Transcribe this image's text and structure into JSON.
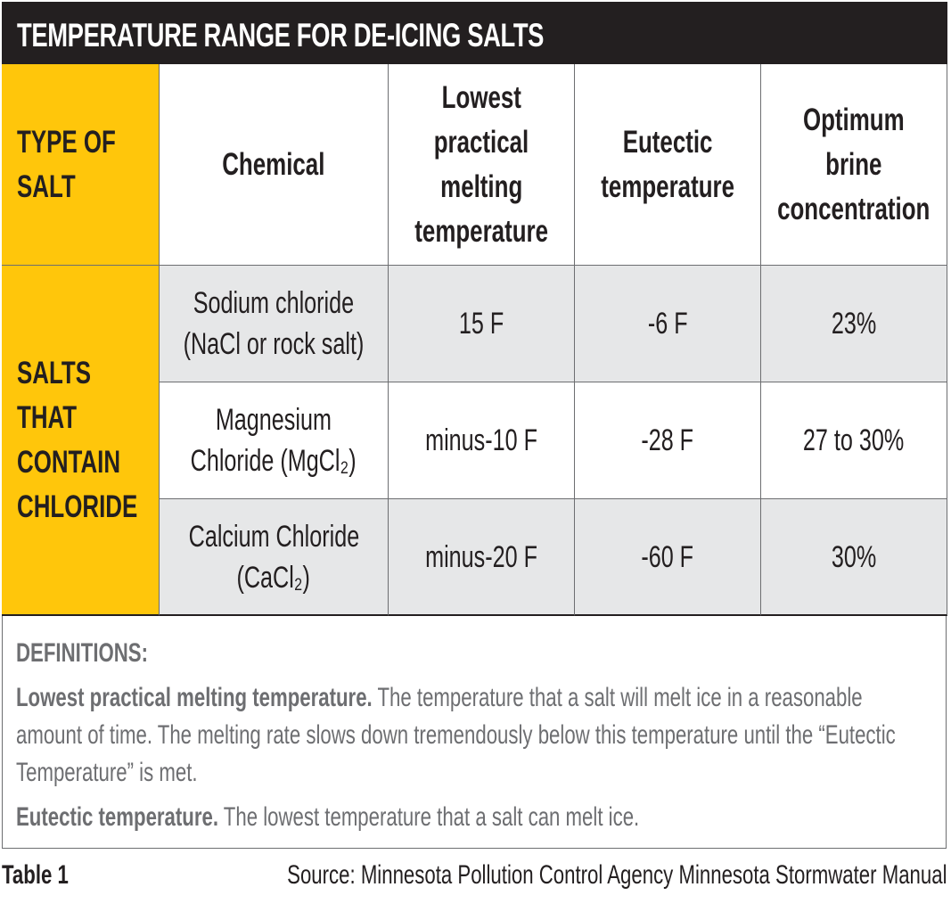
{
  "title": "TEMPERATURE RANGE FOR DE-ICING SALTS",
  "colors": {
    "title_bg": "#231f20",
    "accent_yellow": "#ffc60b",
    "row_gray": "#e6e7e8",
    "definition_text": "#6d6e71"
  },
  "table": {
    "headers": [
      [
        "TYPE OF",
        "SALT"
      ],
      [
        "Chemical"
      ],
      [
        "Lowest",
        "practical",
        "melting",
        "temperature"
      ],
      [
        "Eutectic",
        "temperature"
      ],
      [
        "Optimum",
        "brine",
        "concentration"
      ]
    ],
    "group_label": [
      "SALTS",
      "THAT",
      "CONTAIN",
      "CHLORIDE"
    ],
    "rows": [
      {
        "chemical": [
          "Sodium chloride",
          "(NaCl or rock salt)"
        ],
        "lowest": "15 F",
        "eutectic": "-6 F",
        "brine": "23%"
      },
      {
        "chemical": [
          "Magnesium",
          "Chloride (MgCl₂)"
        ],
        "lowest": "minus-10 F",
        "eutectic": "-28 F",
        "brine": "27 to 30%"
      },
      {
        "chemical": [
          "Calcium Chloride",
          "(CaCl₂)"
        ],
        "lowest": "minus-20 F",
        "eutectic": "-60 F",
        "brine": "30%"
      }
    ]
  },
  "definitions": {
    "heading": "DEFINITIONS:",
    "items": [
      {
        "term": "Lowest practical melting temperature.",
        "text": "The temperature that a salt will melt ice in a reasonable amount of time. The melting rate slows down tremendously below this temperature until the “Eutectic Temperature” is met."
      },
      {
        "term": "Eutectic temperature.",
        "text": "The lowest temperature that a salt can melt ice."
      }
    ]
  },
  "footer": {
    "label": "Table 1",
    "source": "Source: Minnesota Pollution Control Agency Minnesota Stormwater Manual"
  }
}
